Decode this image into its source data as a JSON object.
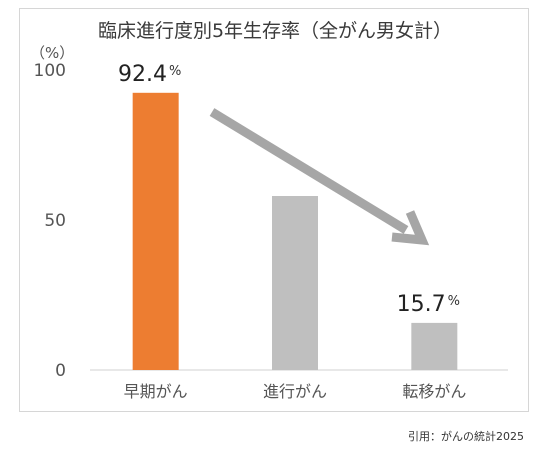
{
  "chart_data": {
    "type": "bar",
    "title": "臨床進行度別5年生存率（全がん男女計）",
    "ylabel": "（%）",
    "ylim": [
      0,
      100
    ],
    "yticks": [
      0,
      50,
      100
    ],
    "categories": [
      "早期がん",
      "進行がん",
      "転移がん"
    ],
    "values": [
      92.4,
      58,
      15.7
    ],
    "bar_colors": [
      "#ed7d31",
      "#bfbfbf",
      "#bfbfbf"
    ],
    "data_labels": [
      {
        "value": "92.4",
        "unit": "%"
      },
      {
        "value": "",
        "unit": ""
      },
      {
        "value": "15.7",
        "unit": "%"
      }
    ],
    "grid": false,
    "annotation_arrow": {
      "color": "#a6a6a6",
      "from_category": 0,
      "to_category": 2
    }
  },
  "citation": "引用：がんの統計2025"
}
